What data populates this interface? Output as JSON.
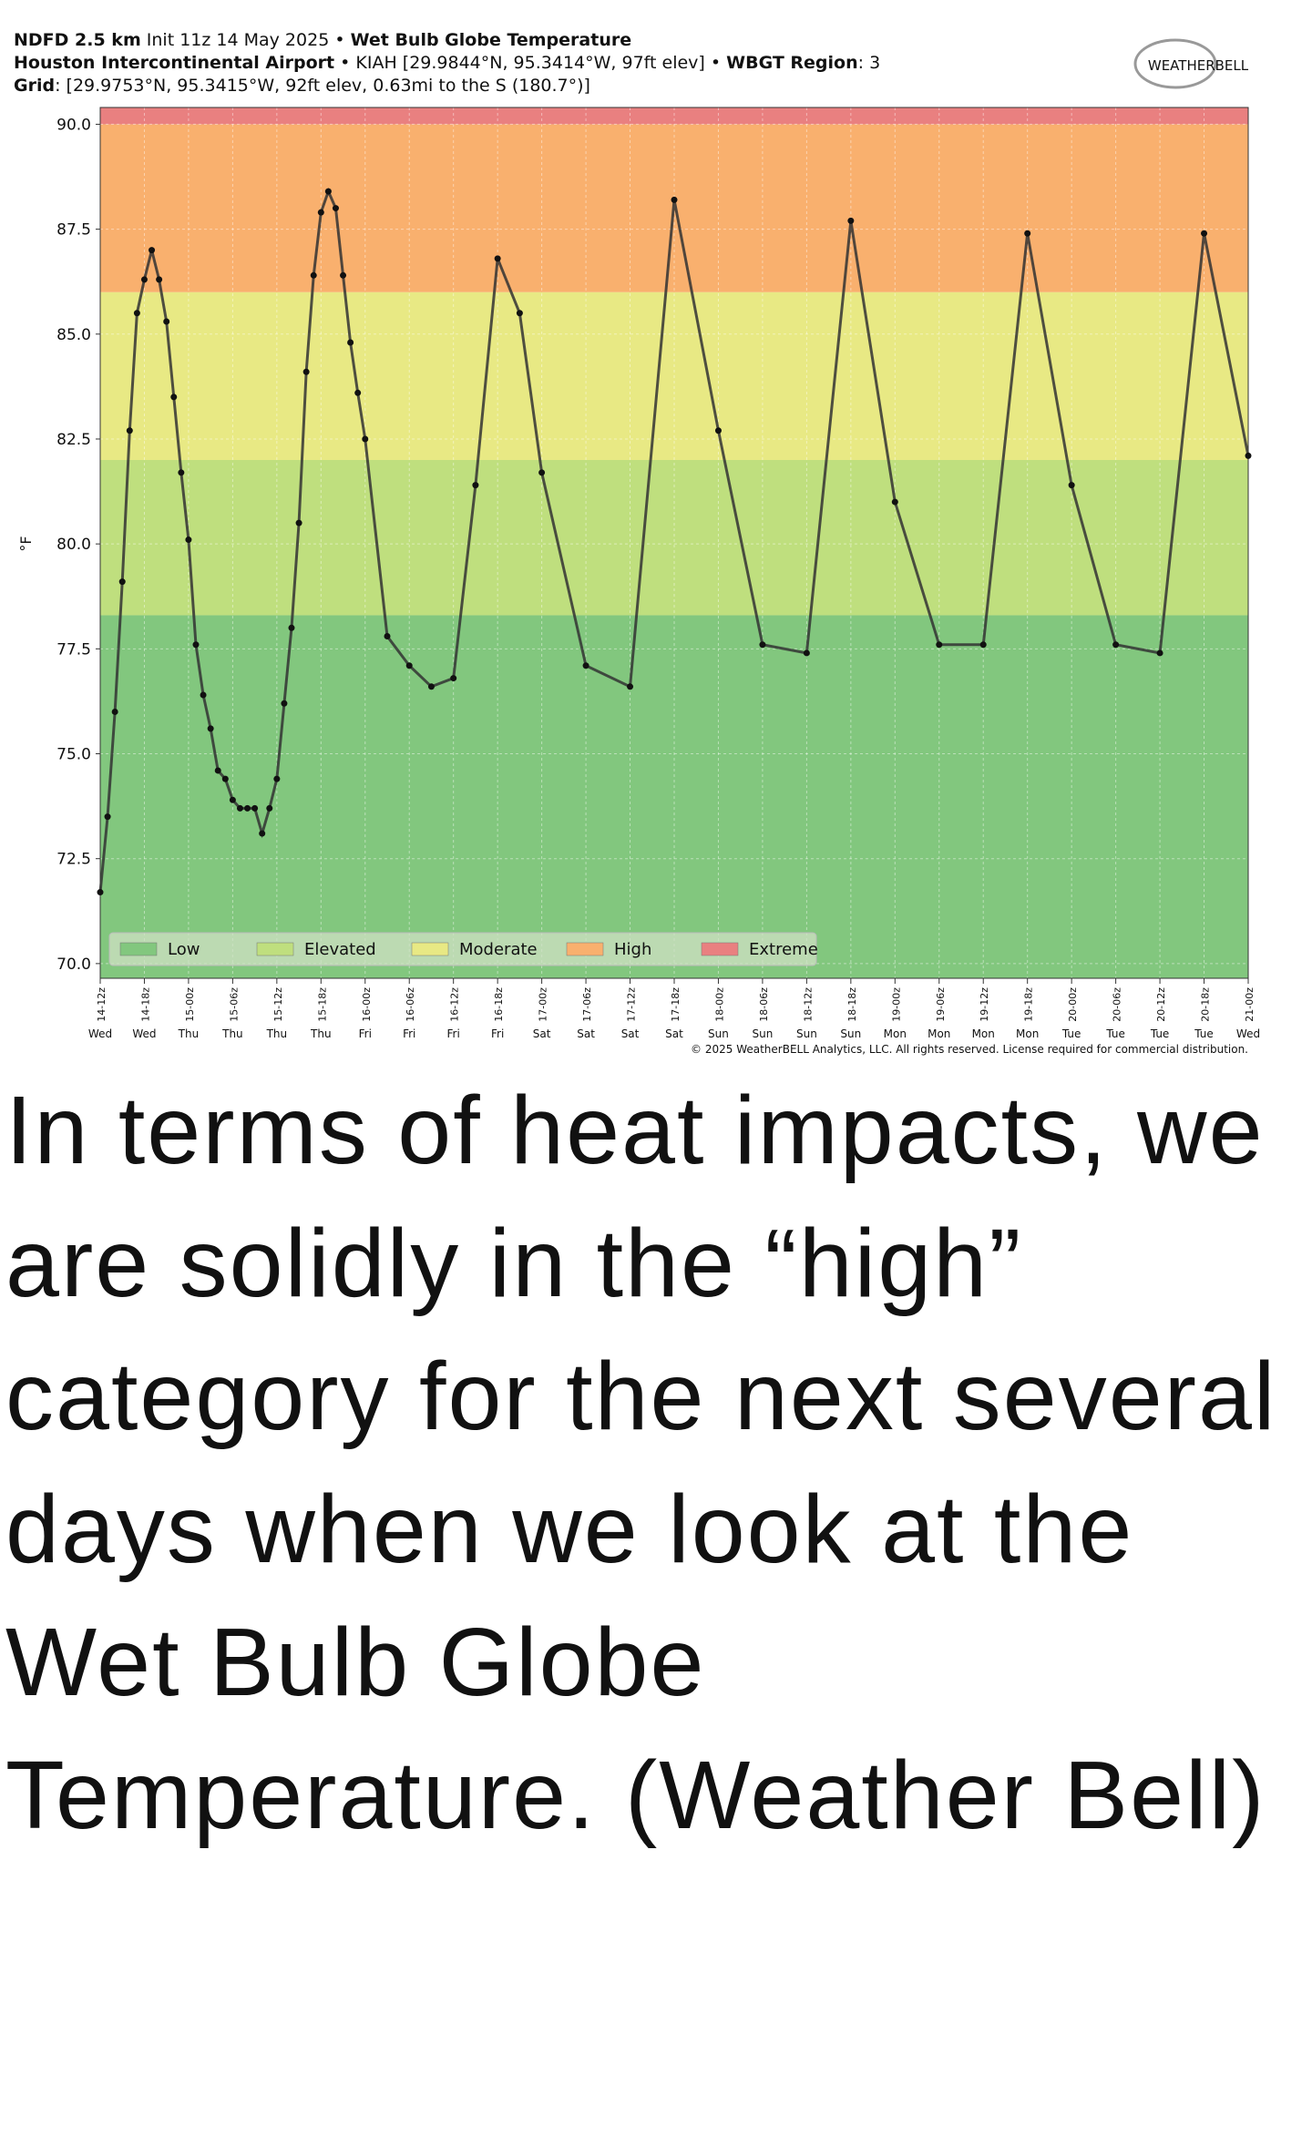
{
  "chart_data": {
    "type": "line",
    "title_lines": [
      [
        {
          "text": "NDFD 2.5 km",
          "bold": true
        },
        {
          "text": " Init 11z 14 May 2025 • ",
          "bold": false
        },
        {
          "text": "Wet Bulb Globe Temperature",
          "bold": true
        }
      ],
      [
        {
          "text": "Houston Intercontinental Airport",
          "bold": true
        },
        {
          "text": " • KIAH [29.9844°N, 95.3414°W, 97ft elev] • ",
          "bold": false
        },
        {
          "text": "WBGT Region",
          "bold": true
        },
        {
          "text": ": 3",
          "bold": false
        }
      ],
      [
        {
          "text": "Grid",
          "bold": true
        },
        {
          "text": ": [29.9753°N, 95.3415°W, 92ft elev, 0.63mi to the S (180.7°)]",
          "bold": false
        }
      ]
    ],
    "logo": "WEATHERBELL",
    "copyright": "© 2025 WeatherBELL Analytics, LLC. All rights reserved. License required for commercial distribution.",
    "ylabel": "°F",
    "ylim": [
      69.65,
      90.4
    ],
    "yticks": [
      {
        "value": 70,
        "label": "70.0"
      },
      {
        "value": 72.5,
        "label": "72.5"
      },
      {
        "value": 75,
        "label": "75.0"
      },
      {
        "value": 77.5,
        "label": "77.5"
      },
      {
        "value": 80,
        "label": "80.0"
      },
      {
        "value": 82.5,
        "label": "82.5"
      },
      {
        "value": 85,
        "label": "85.0"
      },
      {
        "value": 87.5,
        "label": "87.5"
      },
      {
        "value": 90,
        "label": "90.0"
      }
    ],
    "xlim": [
      0,
      156
    ],
    "xticks": [
      {
        "value": 0,
        "label": "14-12z"
      },
      {
        "value": 6,
        "label": "14-18z"
      },
      {
        "value": 12,
        "label": "15-00z"
      },
      {
        "value": 18,
        "label": "15-06z"
      },
      {
        "value": 24,
        "label": "15-12z"
      },
      {
        "value": 30,
        "label": "15-18z"
      },
      {
        "value": 36,
        "label": "16-00z"
      },
      {
        "value": 42,
        "label": "16-06z"
      },
      {
        "value": 48,
        "label": "16-12z"
      },
      {
        "value": 54,
        "label": "16-18z"
      },
      {
        "value": 60,
        "label": "17-00z"
      },
      {
        "value": 66,
        "label": "17-06z"
      },
      {
        "value": 72,
        "label": "17-12z"
      },
      {
        "value": 78,
        "label": "17-18z"
      },
      {
        "value": 84,
        "label": "18-00z"
      },
      {
        "value": 90,
        "label": "18-06z"
      },
      {
        "value": 96,
        "label": "18-12z"
      },
      {
        "value": 102,
        "label": "18-18z"
      },
      {
        "value": 108,
        "label": "19-00z"
      },
      {
        "value": 114,
        "label": "19-06z"
      },
      {
        "value": 120,
        "label": "19-12z"
      },
      {
        "value": 126,
        "label": "19-18z"
      },
      {
        "value": 132,
        "label": "20-00z"
      },
      {
        "value": 138,
        "label": "20-06z"
      },
      {
        "value": 144,
        "label": "20-12z"
      },
      {
        "value": 150,
        "label": "20-18z"
      },
      {
        "value": 156,
        "label": "21-00z"
      }
    ],
    "day_labels": [
      "Wed",
      "Wed",
      "Thu",
      "Thu",
      "Thu",
      "Thu",
      "Fri",
      "Fri",
      "Fri",
      "Fri",
      "Sat",
      "Sat",
      "Sat",
      "Sat",
      "Sun",
      "Sun",
      "Sun",
      "Sun",
      "Mon",
      "Mon",
      "Mon",
      "Mon",
      "Tue",
      "Tue",
      "Tue",
      "Tue",
      "Wed"
    ],
    "grid": true,
    "bands": [
      {
        "name": "Low",
        "color": "#82c77e",
        "from": 69.65,
        "to": 78.3
      },
      {
        "name": "Elevated",
        "color": "#bfdf7e",
        "from": 78.3,
        "to": 82
      },
      {
        "name": "Moderate",
        "color": "#e8e984",
        "from": 82,
        "to": 86
      },
      {
        "name": "High",
        "color": "#f9b06e",
        "from": 86,
        "to": 90
      },
      {
        "name": "Extreme",
        "color": "#e98080",
        "from": 90,
        "to": 90.4
      }
    ],
    "legend_location": "lower left",
    "series": [
      {
        "color": "#333333",
        "x": [
          0,
          1,
          2,
          3,
          4,
          5,
          6,
          7,
          8,
          9,
          10,
          11,
          12,
          13,
          14,
          15,
          16,
          17,
          18,
          19,
          20,
          21,
          22,
          23,
          24,
          25,
          26,
          27,
          28,
          29,
          30,
          31,
          32,
          33,
          34,
          35,
          36,
          39,
          42,
          45,
          48,
          51,
          54,
          57,
          60,
          66,
          72,
          78,
          84,
          90,
          96,
          102,
          108,
          114,
          120,
          126,
          132,
          138,
          144,
          150,
          156
        ],
        "values": [
          71.7,
          73.5,
          76.0,
          79.1,
          82.7,
          85.5,
          86.3,
          87.0,
          86.3,
          85.3,
          83.5,
          81.7,
          80.1,
          77.6,
          76.4,
          75.6,
          74.6,
          74.4,
          73.9,
          73.7,
          73.7,
          73.7,
          73.1,
          73.7,
          74.4,
          76.2,
          78.0,
          80.5,
          84.1,
          86.4,
          87.9,
          88.4,
          88.0,
          86.4,
          84.8,
          83.6,
          82.5,
          77.8,
          77.1,
          76.6,
          76.8,
          81.4,
          86.8,
          85.5,
          81.7,
          77.1,
          76.6,
          88.2,
          82.7,
          77.6,
          77.4,
          87.7,
          81.0,
          77.6,
          77.6,
          87.4,
          81.4,
          77.6,
          77.4,
          87.4,
          82.1
        ]
      }
    ]
  },
  "caption": "In terms of heat impacts, we are solidly in the “high” category for the next several days when we look at the Wet Bulb Globe Temperature. (Weather Bell)"
}
